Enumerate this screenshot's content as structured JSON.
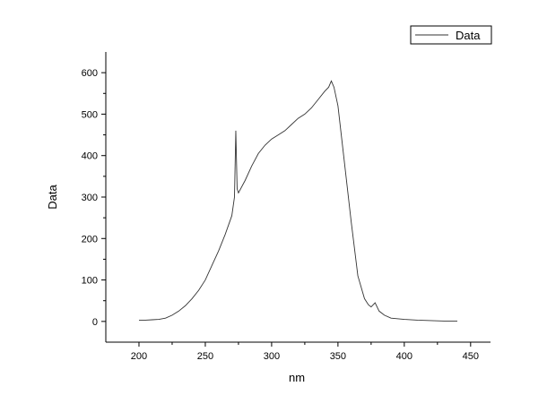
{
  "chart_data": {
    "type": "line",
    "title": "",
    "xlabel": "nm",
    "ylabel": "Data",
    "xlim": [
      175,
      465
    ],
    "ylim": [
      -50,
      650
    ],
    "xticks": [
      200,
      250,
      300,
      350,
      400,
      450
    ],
    "yticks": [
      0,
      100,
      200,
      300,
      400,
      500,
      600
    ],
    "grid": false,
    "legend_position": "top-right",
    "series": [
      {
        "name": "Data",
        "color": "#333333",
        "x": [
          200,
          205,
          210,
          215,
          220,
          225,
          230,
          235,
          240,
          245,
          250,
          255,
          260,
          265,
          270,
          272,
          273,
          274,
          275,
          280,
          285,
          290,
          295,
          300,
          305,
          310,
          315,
          320,
          325,
          330,
          335,
          340,
          343,
          345,
          347,
          350,
          355,
          360,
          365,
          370,
          373,
          375,
          378,
          381,
          385,
          390,
          400,
          410,
          420,
          430,
          440
        ],
        "y": [
          3,
          3,
          4,
          5,
          8,
          15,
          25,
          38,
          55,
          75,
          100,
          135,
          170,
          210,
          255,
          300,
          460,
          320,
          310,
          340,
          375,
          405,
          425,
          440,
          450,
          460,
          475,
          490,
          500,
          515,
          535,
          555,
          565,
          580,
          565,
          520,
          380,
          240,
          110,
          55,
          40,
          35,
          45,
          25,
          15,
          8,
          5,
          3,
          2,
          1,
          1
        ]
      }
    ]
  }
}
